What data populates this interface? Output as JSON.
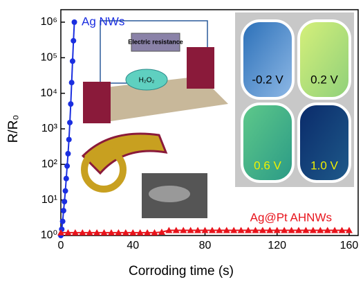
{
  "chart_data": {
    "type": "scatter",
    "log_y": true,
    "x_label": "Corroding time (s)",
    "y_label": "R/R₀",
    "xlim": [
      0,
      165
    ],
    "xticks": [
      0,
      40,
      80,
      120,
      160
    ],
    "ylim": [
      1,
      1000000
    ],
    "yticks": [
      {
        "value": 1,
        "label": "10⁰"
      },
      {
        "value": 10,
        "label": "10¹"
      },
      {
        "value": 100,
        "label": "10²"
      },
      {
        "value": 1000,
        "label": "10³"
      },
      {
        "value": 10000,
        "label": "10⁴"
      },
      {
        "value": 100000,
        "label": "10⁵"
      },
      {
        "value": 1000000,
        "label": "10⁶"
      }
    ],
    "series": [
      {
        "name": "Ag NWs",
        "color": "#1a2ee0",
        "marker": "circle",
        "x": [
          0,
          0.5,
          1,
          1.5,
          2,
          2.5,
          3,
          3.5,
          4,
          4.5,
          5,
          5.5,
          6,
          6.5,
          7,
          7.5
        ],
        "values": [
          1,
          1.5,
          2.5,
          5,
          9,
          18,
          40,
          90,
          200,
          500,
          1500,
          5000,
          20000,
          80000,
          300000,
          1000000
        ]
      },
      {
        "name": "Ag@Pt AHNWs",
        "color": "#e8141c",
        "marker": "triangle",
        "x": [
          0,
          4,
          8,
          12,
          16,
          20,
          24,
          28,
          32,
          36,
          40,
          44,
          48,
          52,
          56,
          60,
          64,
          68,
          72,
          76,
          80,
          84,
          88,
          92,
          96,
          100,
          104,
          108,
          112,
          116,
          120,
          124,
          128,
          132,
          136,
          140,
          144,
          148,
          152,
          156,
          160
        ],
        "values": [
          1.2,
          1.2,
          1.2,
          1.2,
          1.2,
          1.2,
          1.2,
          1.2,
          1.2,
          1.2,
          1.2,
          1.2,
          1.2,
          1.2,
          1.25,
          1.4,
          1.4,
          1.4,
          1.4,
          1.4,
          1.4,
          1.4,
          1.4,
          1.4,
          1.4,
          1.4,
          1.4,
          1.4,
          1.4,
          1.4,
          1.4,
          1.4,
          1.4,
          1.4,
          1.4,
          1.4,
          1.4,
          1.4,
          1.4,
          1.4,
          1.4
        ]
      }
    ],
    "annotations": [
      "Electric resistance",
      "H₂O₂",
      "-0.2 V",
      "0.2 V",
      "0.6 V",
      "1.0 V"
    ]
  }
}
